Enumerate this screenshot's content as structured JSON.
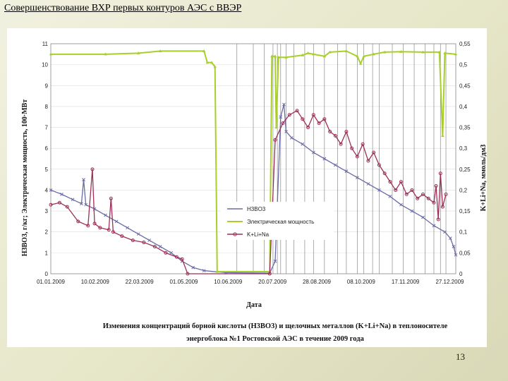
{
  "slide": {
    "title": "Совершенствование ВХР первых контуров АЭС с ВВЭР",
    "page_number": "13"
  },
  "chart_data": {
    "type": "line",
    "caption_lines": [
      "Изменения концентраций борной кислоты (H3BO3) и щелочных металлов (K+Li+Na) в теплоносителе",
      "энергоблока №1 Ростовской АЭС в течение 2009 года"
    ],
    "xlabel": "Дата",
    "ylabel_left": "H3BO3, г/кг; Электрическая мощность, 100·МВт",
    "ylabel_right": "K+Li+Na, ммоль/дм3",
    "x_tick_labels": [
      "01.01.2009",
      "10.02.2009",
      "22.03.2009",
      "01.05.2009",
      "10.06.2009",
      "20.07.2009",
      "28.08.2009",
      "08.10.2009",
      "17.11.2009",
      "27.12.2009"
    ],
    "x_range_days": [
      0,
      370
    ],
    "y_left_range": [
      0,
      11
    ],
    "y_left_ticks": [
      "0",
      "1",
      "2",
      "3",
      "4",
      "5",
      "6",
      "7",
      "8",
      "9",
      "10",
      "11"
    ],
    "y_right_range": [
      0,
      0.55
    ],
    "y_right_ticks": [
      "0",
      "0,05",
      "0,1",
      "0,15",
      "0,2",
      "0,25",
      "0,3",
      "0,35",
      "0,4",
      "0,45",
      "0,5",
      "0,55"
    ],
    "series": [
      {
        "name": "H3BO3",
        "axis": "left",
        "color": "#6a6aa6",
        "marker": "x",
        "points": [
          [
            0,
            4.0
          ],
          [
            10,
            3.8
          ],
          [
            20,
            3.55
          ],
          [
            28,
            3.35
          ],
          [
            30,
            4.5
          ],
          [
            32,
            3.3
          ],
          [
            40,
            3.1
          ],
          [
            50,
            2.8
          ],
          [
            60,
            2.5
          ],
          [
            70,
            2.2
          ],
          [
            80,
            1.9
          ],
          [
            90,
            1.6
          ],
          [
            100,
            1.3
          ],
          [
            110,
            1.0
          ],
          [
            120,
            0.6
          ],
          [
            130,
            0.3
          ],
          [
            140,
            0.15
          ],
          [
            160,
            0.05
          ],
          [
            200,
            0.03
          ],
          [
            205,
            0.6
          ],
          [
            210,
            7.5
          ],
          [
            213,
            8.1
          ],
          [
            215,
            6.8
          ],
          [
            220,
            6.5
          ],
          [
            230,
            6.2
          ],
          [
            240,
            5.8
          ],
          [
            250,
            5.5
          ],
          [
            260,
            5.2
          ],
          [
            270,
            4.9
          ],
          [
            280,
            4.6
          ],
          [
            290,
            4.3
          ],
          [
            300,
            4.0
          ],
          [
            310,
            3.7
          ],
          [
            320,
            3.3
          ],
          [
            330,
            3.0
          ],
          [
            340,
            2.7
          ],
          [
            350,
            2.3
          ],
          [
            360,
            2.0
          ],
          [
            365,
            1.7
          ],
          [
            368,
            1.3
          ],
          [
            370,
            0.9
          ]
        ]
      },
      {
        "name": "Электрическая мощность",
        "axis": "left",
        "color": "#a9cf2a",
        "marker": "triangle",
        "points": [
          [
            0,
            10.5
          ],
          [
            50,
            10.5
          ],
          [
            80,
            10.55
          ],
          [
            100,
            10.65
          ],
          [
            140,
            10.65
          ],
          [
            143,
            10.1
          ],
          [
            147,
            10.1
          ],
          [
            150,
            9.9
          ],
          [
            152,
            0.1
          ],
          [
            200,
            0.1
          ],
          [
            202,
            10.4
          ],
          [
            205,
            10.4
          ],
          [
            206,
            7.0
          ],
          [
            208,
            10.35
          ],
          [
            215,
            10.35
          ],
          [
            230,
            10.45
          ],
          [
            235,
            10.55
          ],
          [
            240,
            10.5
          ],
          [
            250,
            10.4
          ],
          [
            255,
            10.6
          ],
          [
            270,
            10.65
          ],
          [
            280,
            10.4
          ],
          [
            283,
            10.05
          ],
          [
            286,
            10.4
          ],
          [
            295,
            10.5
          ],
          [
            305,
            10.6
          ],
          [
            320,
            10.62
          ],
          [
            340,
            10.6
          ],
          [
            355,
            10.6
          ],
          [
            358,
            6.6
          ],
          [
            360,
            10.55
          ],
          [
            370,
            10.5
          ]
        ]
      },
      {
        "name": "K+Li+Na",
        "axis": "right",
        "color": "#9c2f58",
        "marker": "circle",
        "points": [
          [
            0,
            0.165
          ],
          [
            8,
            0.17
          ],
          [
            15,
            0.16
          ],
          [
            25,
            0.125
          ],
          [
            34,
            0.115
          ],
          [
            38,
            0.25
          ],
          [
            40,
            0.12
          ],
          [
            45,
            0.11
          ],
          [
            53,
            0.105
          ],
          [
            55,
            0.18
          ],
          [
            57,
            0.1
          ],
          [
            65,
            0.09
          ],
          [
            75,
            0.08
          ],
          [
            85,
            0.075
          ],
          [
            95,
            0.065
          ],
          [
            105,
            0.05
          ],
          [
            115,
            0.04
          ],
          [
            120,
            0.035
          ],
          [
            125,
            0.0
          ],
          [
            200,
            0.0
          ],
          [
            205,
            0.32
          ],
          [
            212,
            0.36
          ],
          [
            218,
            0.38
          ],
          [
            225,
            0.39
          ],
          [
            230,
            0.37
          ],
          [
            235,
            0.35
          ],
          [
            240,
            0.38
          ],
          [
            245,
            0.36
          ],
          [
            250,
            0.37
          ],
          [
            255,
            0.34
          ],
          [
            260,
            0.33
          ],
          [
            265,
            0.31
          ],
          [
            270,
            0.34
          ],
          [
            275,
            0.3
          ],
          [
            280,
            0.28
          ],
          [
            285,
            0.31
          ],
          [
            290,
            0.27
          ],
          [
            295,
            0.29
          ],
          [
            300,
            0.26
          ],
          [
            305,
            0.24
          ],
          [
            310,
            0.22
          ],
          [
            315,
            0.2
          ],
          [
            320,
            0.22
          ],
          [
            325,
            0.19
          ],
          [
            330,
            0.2
          ],
          [
            335,
            0.18
          ],
          [
            340,
            0.19
          ],
          [
            345,
            0.18
          ],
          [
            350,
            0.17
          ],
          [
            352,
            0.21
          ],
          [
            354,
            0.13
          ],
          [
            356,
            0.24
          ],
          [
            358,
            0.16
          ],
          [
            361,
            0.19
          ]
        ]
      }
    ],
    "legend": [
      {
        "label": "H3BO3",
        "marker": "x",
        "color": "#6a6aa6"
      },
      {
        "label": "Электрическая мощность",
        "marker": "triangle",
        "color": "#a9cf2a"
      },
      {
        "label": "K+Li+Na",
        "marker": "circle",
        "color": "#9c2f58"
      }
    ],
    "legend_position": "center",
    "vertical_gridlines": "irregular, concentrated May–December"
  }
}
